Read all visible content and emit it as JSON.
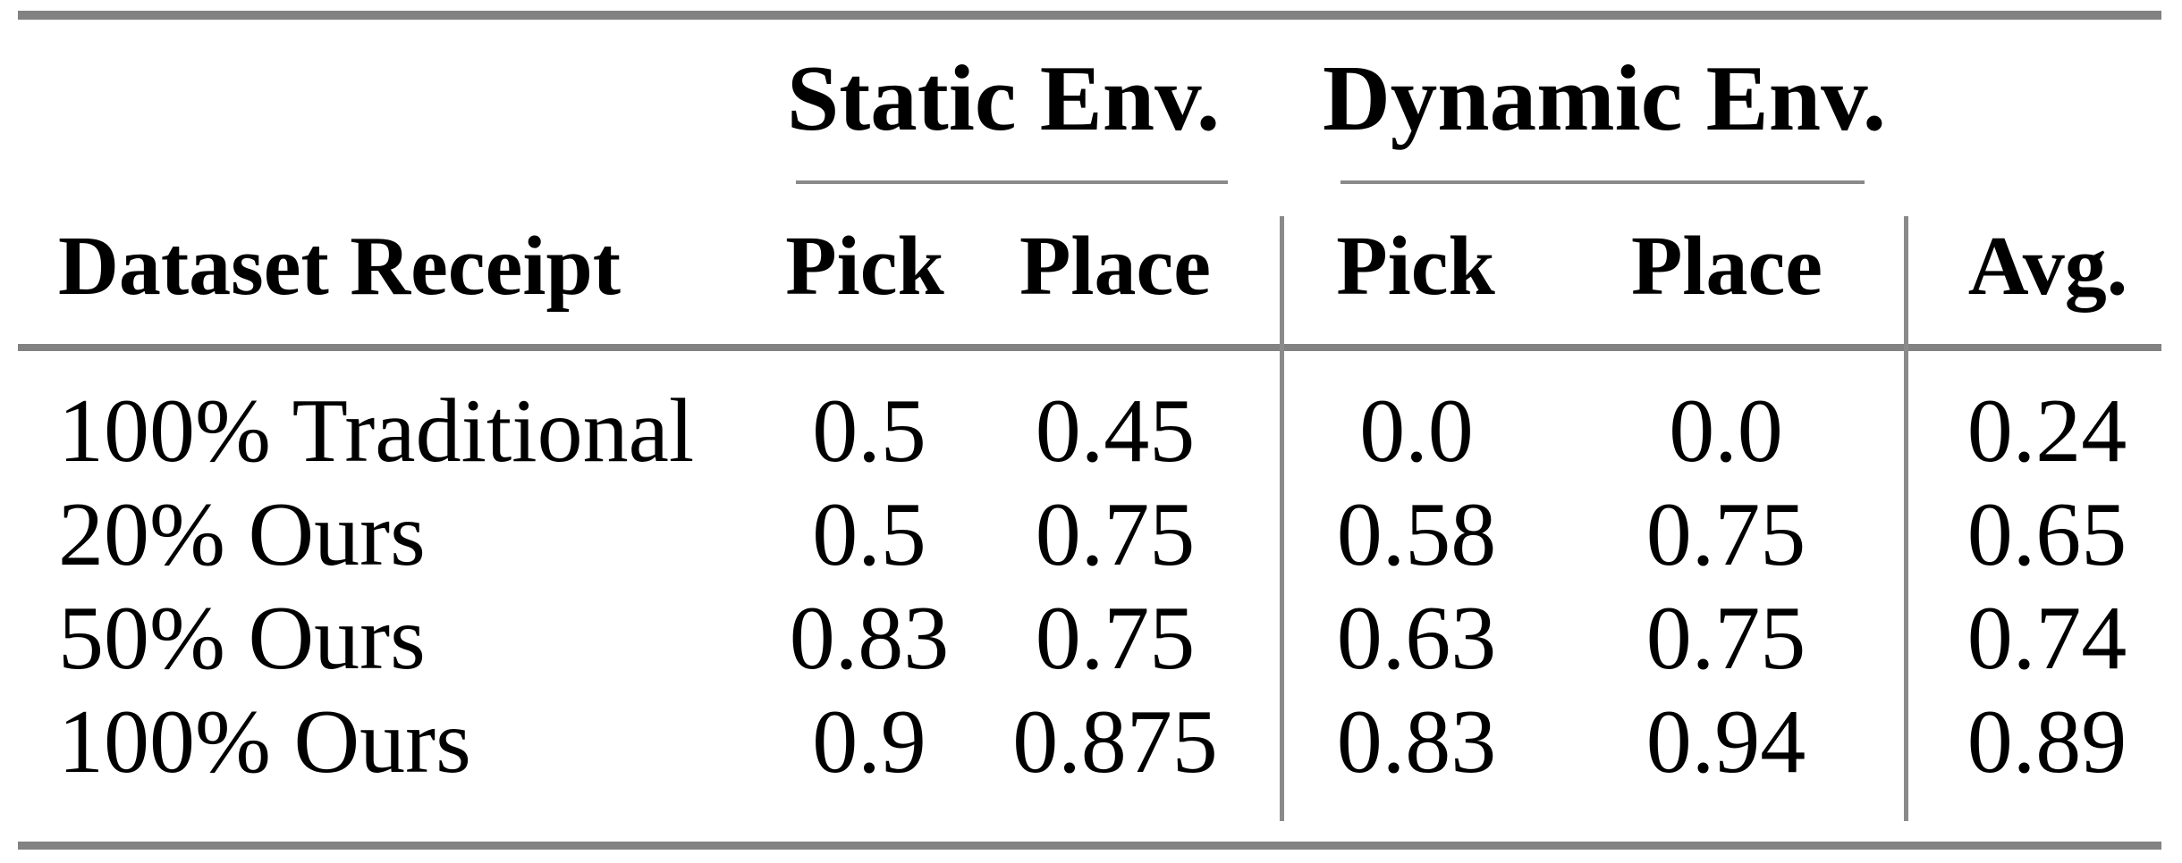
{
  "table": {
    "col_groups": [
      {
        "label": "Static Env."
      },
      {
        "label": "Dynamic Env."
      }
    ],
    "headers": {
      "dataset": "Dataset Receipt",
      "static_pick": "Pick",
      "static_place": "Place",
      "dynamic_pick": "Pick",
      "dynamic_place": "Place",
      "avg": "Avg."
    },
    "rows": [
      {
        "label": "100% Traditional",
        "static_pick": "0.5",
        "static_place": "0.45",
        "dynamic_pick": "0.0",
        "dynamic_place": "0.0",
        "avg": "0.24"
      },
      {
        "label": "20% Ours",
        "static_pick": "0.5",
        "static_place": "0.75",
        "dynamic_pick": "0.58",
        "dynamic_place": "0.75",
        "avg": "0.65"
      },
      {
        "label": "50% Ours",
        "static_pick": "0.83",
        "static_place": "0.75",
        "dynamic_pick": "0.63",
        "dynamic_place": "0.75",
        "avg": "0.74"
      },
      {
        "label": "100% Ours",
        "static_pick": "0.9",
        "static_place": "0.875",
        "dynamic_pick": "0.83",
        "dynamic_place": "0.94",
        "avg": "0.89"
      }
    ]
  },
  "colors": {
    "thick_rule": "#828282",
    "thin_rule": "#8a8a8a",
    "text": "#000000",
    "background": "#ffffff"
  },
  "chart_data": {
    "type": "table",
    "title": "",
    "column_groups": [
      "Static Env.",
      "Dynamic Env."
    ],
    "columns": [
      "Dataset Receipt",
      "Static Env. Pick",
      "Static Env. Place",
      "Dynamic Env. Pick",
      "Dynamic Env. Place",
      "Avg."
    ],
    "rows": [
      [
        "100% Traditional",
        0.5,
        0.45,
        0.0,
        0.0,
        0.24
      ],
      [
        "20% Ours",
        0.5,
        0.75,
        0.58,
        0.75,
        0.65
      ],
      [
        "50% Ours",
        0.83,
        0.75,
        0.63,
        0.75,
        0.74
      ],
      [
        "100% Ours",
        0.9,
        0.875,
        0.83,
        0.94,
        0.89
      ]
    ]
  }
}
